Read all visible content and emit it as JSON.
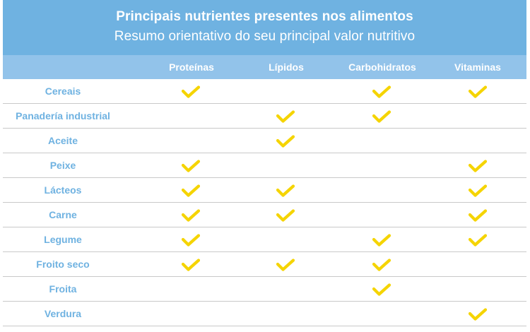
{
  "title": "Principais nutrientes presentes nos alimentos",
  "subtitle": "Resumo orientativo do seu principal valor nutritivo",
  "columns": [
    "Proteínas",
    "Lípidos",
    "Carbohidratos",
    "Vitaminas"
  ],
  "check_icon": "checkmark-icon",
  "colors": {
    "title_band": "#6fb2e1",
    "header_band": "#92c3ea",
    "row_label": "#6fb2e1",
    "check": "#f5d400",
    "divider": "#c9c9c9"
  },
  "rows": [
    {
      "label": "Cereais",
      "marks": [
        true,
        false,
        true,
        true
      ]
    },
    {
      "label": "Panadería industrial",
      "marks": [
        false,
        true,
        true,
        false
      ]
    },
    {
      "label": "Aceite",
      "marks": [
        false,
        true,
        false,
        false
      ]
    },
    {
      "label": "Peixe",
      "marks": [
        true,
        false,
        false,
        true
      ]
    },
    {
      "label": "Lácteos",
      "marks": [
        true,
        true,
        false,
        true
      ]
    },
    {
      "label": "Carne",
      "marks": [
        true,
        true,
        false,
        true
      ]
    },
    {
      "label": "Legume",
      "marks": [
        true,
        false,
        true,
        true
      ]
    },
    {
      "label": "Froito seco",
      "marks": [
        true,
        true,
        true,
        false
      ]
    },
    {
      "label": "Froita",
      "marks": [
        false,
        false,
        true,
        false
      ]
    },
    {
      "label": "Verdura",
      "marks": [
        false,
        false,
        false,
        true
      ]
    }
  ]
}
